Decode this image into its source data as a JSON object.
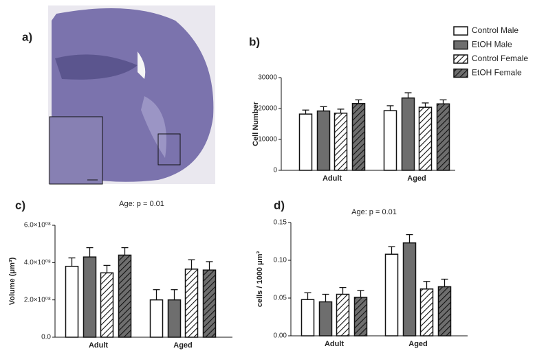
{
  "image_panel": {
    "label": "a)"
  },
  "chart_data": [
    {
      "type": "bar",
      "label": "b)",
      "ylabel": "Cell Number",
      "categories": [
        "Adult",
        "Aged"
      ],
      "series": [
        {
          "name": "Control Male",
          "color": "#ffffff",
          "hatch": false,
          "values": [
            18200,
            19300
          ],
          "errors": [
            1300,
            1600
          ]
        },
        {
          "name": "EtOH Male",
          "color": "#6e6e6e",
          "hatch": false,
          "values": [
            19200,
            23400
          ],
          "errors": [
            1400,
            1700
          ]
        },
        {
          "name": "Control Female",
          "color": "#ffffff",
          "hatch": true,
          "values": [
            18500,
            20400
          ],
          "errors": [
            1300,
            1400
          ]
        },
        {
          "name": "EtOH Female",
          "color": "#6e6e6e",
          "hatch": true,
          "values": [
            21600,
            21500
          ],
          "errors": [
            1200,
            1300
          ]
        }
      ],
      "ylim": [
        0,
        30000
      ],
      "yticks": [
        0,
        10000,
        20000,
        30000
      ],
      "legend": "top-right"
    },
    {
      "type": "bar",
      "label": "c)",
      "ylabel": "Volume (μm³)",
      "annotation": "Age: p = 0.01",
      "categories": [
        "Adult",
        "Aged"
      ],
      "series": [
        {
          "color": "#ffffff",
          "hatch": false,
          "values": [
            380000000,
            200000000
          ],
          "errors": [
            45000000,
            55000000
          ]
        },
        {
          "color": "#6e6e6e",
          "hatch": false,
          "values": [
            430000000,
            200000000
          ],
          "errors": [
            50000000,
            55000000
          ]
        },
        {
          "color": "#ffffff",
          "hatch": true,
          "values": [
            345000000,
            365000000
          ],
          "errors": [
            40000000,
            50000000
          ]
        },
        {
          "color": "#6e6e6e",
          "hatch": true,
          "values": [
            440000000,
            360000000
          ],
          "errors": [
            40000000,
            45000000
          ]
        }
      ],
      "ylim": [
        0,
        600000000
      ],
      "yticks": [
        {
          "value": 0,
          "label": "0.0"
        },
        {
          "value": 200000000,
          "label": "2.0×10⁰⁸"
        },
        {
          "value": 400000000,
          "label": "4.0×10⁰⁸"
        },
        {
          "value": 600000000,
          "label": "6.0×10⁰⁸"
        }
      ]
    },
    {
      "type": "bar",
      "label": "d)",
      "ylabel": "cells / 1000 μm³",
      "annotation": "Age: p = 0.01",
      "categories": [
        "Adult",
        "Aged"
      ],
      "series": [
        {
          "color": "#ffffff",
          "hatch": false,
          "values": [
            0.048,
            0.108
          ],
          "errors": [
            0.009,
            0.01
          ]
        },
        {
          "color": "#6e6e6e",
          "hatch": false,
          "values": [
            0.045,
            0.123
          ],
          "errors": [
            0.01,
            0.011
          ]
        },
        {
          "color": "#ffffff",
          "hatch": true,
          "values": [
            0.055,
            0.062
          ],
          "errors": [
            0.009,
            0.01
          ]
        },
        {
          "color": "#6e6e6e",
          "hatch": true,
          "values": [
            0.051,
            0.065
          ],
          "errors": [
            0.009,
            0.01
          ]
        }
      ],
      "ylim": [
        0,
        0.15
      ],
      "yticks": [
        {
          "value": 0,
          "label": "0.00"
        },
        {
          "value": 0.05,
          "label": "0.05"
        },
        {
          "value": 0.1,
          "label": "0.10"
        },
        {
          "value": 0.15,
          "label": "0.15"
        }
      ]
    }
  ]
}
